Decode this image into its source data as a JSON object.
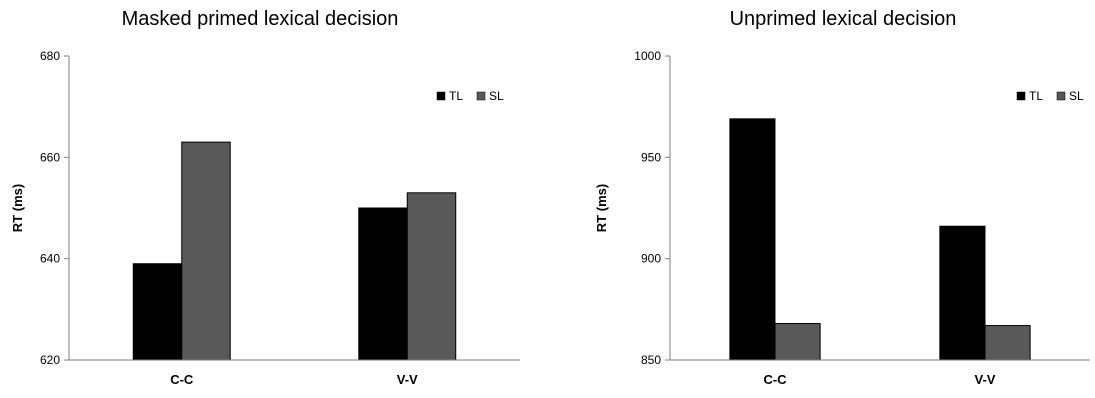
{
  "chart_data": [
    {
      "type": "bar",
      "title": "Masked primed lexical decision",
      "xlabel": "",
      "ylabel": "RT (ms)",
      "ylim": [
        620,
        680
      ],
      "yticks": [
        620,
        640,
        660,
        680
      ],
      "categories": [
        "C-C",
        "V-V"
      ],
      "series": [
        {
          "name": "TL",
          "values": [
            639,
            650
          ],
          "color": "#000000"
        },
        {
          "name": "SL",
          "values": [
            663,
            653
          ],
          "color": "#595959"
        }
      ],
      "legend_position": "top-right",
      "grid": false
    },
    {
      "type": "bar",
      "title": "Unprimed lexical decision",
      "xlabel": "",
      "ylabel": "RT (ms)",
      "ylim": [
        850,
        1000
      ],
      "yticks": [
        850,
        900,
        950,
        1000
      ],
      "categories": [
        "C-C",
        "V-V"
      ],
      "series": [
        {
          "name": "TL",
          "values": [
            969,
            916
          ],
          "color": "#000000"
        },
        {
          "name": "SL",
          "values": [
            868,
            867
          ],
          "color": "#595959"
        }
      ],
      "legend_position": "top-right",
      "grid": false
    }
  ]
}
